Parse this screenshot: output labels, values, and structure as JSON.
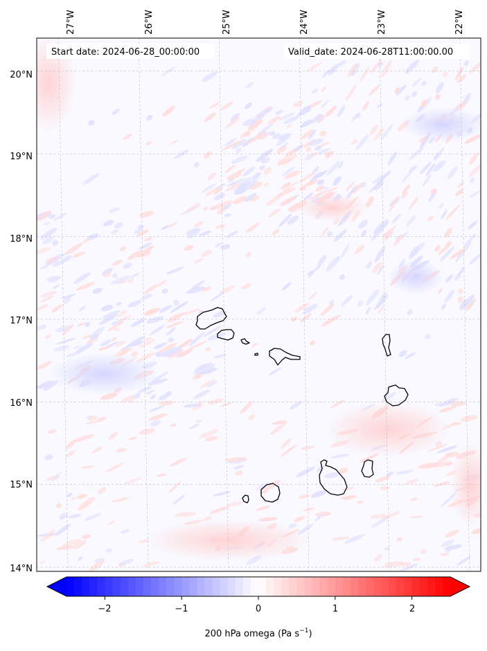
{
  "header": {
    "start_date": "Start date: 2024-06-28_00:00:00",
    "valid_date": "Valid_date: 2024-06-28T11:00:00.00"
  },
  "map": {
    "lon_labels": [
      "27°W",
      "26°W",
      "25°W",
      "24°W",
      "23°W",
      "22°W"
    ],
    "lat_labels": [
      "20°N",
      "19°N",
      "18°N",
      "17°N",
      "16°N",
      "15°N",
      "14°N"
    ],
    "lon_range": [
      -27.33,
      -21.8
    ],
    "lat_range": [
      13.95,
      20.4
    ],
    "gridlines": true,
    "lons": [
      -27,
      -26,
      -25,
      -24,
      -23,
      -22
    ],
    "lats": [
      20,
      19,
      18,
      17,
      16,
      15,
      14
    ],
    "islands": [
      "Santo Antão",
      "São Vicente",
      "Santa Luzia",
      "Branco",
      "São Nicolau",
      "Sal",
      "Boa Vista",
      "Brava",
      "Fogo",
      "Santiago",
      "Maio"
    ]
  },
  "colorbar": {
    "ticks": [
      "−2",
      "−1",
      "0",
      "1",
      "2"
    ],
    "tick_values": [
      -2,
      -1,
      0,
      1,
      2
    ],
    "range": [
      -2.5,
      2.5
    ],
    "extend": "both",
    "label_main": "200 hPa omega (Pa s",
    "label_sup": "−1",
    "label_end": ")",
    "colormap": "bwr",
    "low_color": "#0000ff",
    "mid_color": "#ffffff",
    "high_color": "#ff0000"
  }
}
